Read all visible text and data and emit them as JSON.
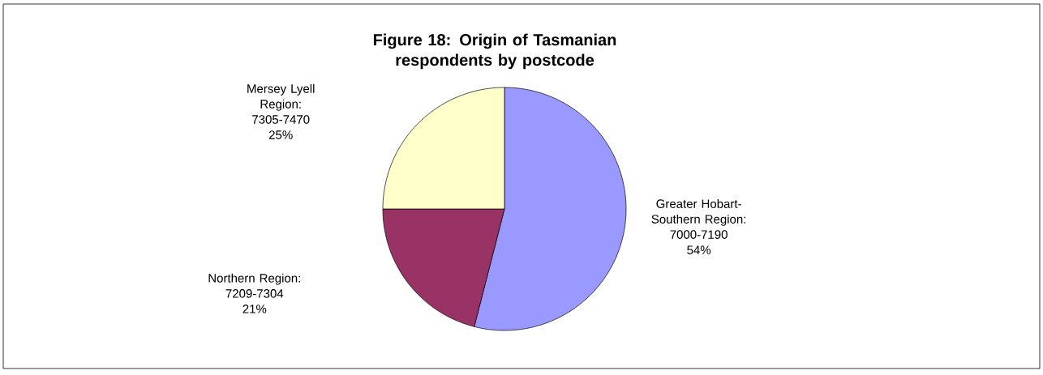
{
  "chart_data": {
    "type": "pie",
    "title": "Figure 18: Origin of Tasmanian respondents by postcode",
    "categories": [
      "Greater Hobart-Southern Region: 7000-7190",
      "Northern Region: 7209-7304",
      "Mersey Lyell Region: 7305-7470"
    ],
    "values": [
      54,
      21,
      25
    ],
    "value_labels": [
      "54%",
      "21%",
      "25%"
    ],
    "colors": [
      "#9999ff",
      "#993366",
      "#ffffcc"
    ]
  }
}
